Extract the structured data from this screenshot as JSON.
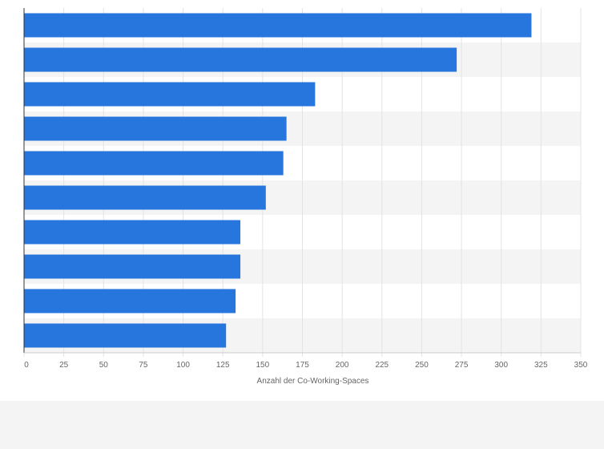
{
  "chart_data": {
    "type": "bar",
    "orientation": "horizontal",
    "title": "",
    "xlabel": "Anzahl der Co-Working-Spaces",
    "ylabel": "",
    "categories": [
      "",
      "",
      "",
      "",
      "",
      "",
      "",
      "",
      "",
      ""
    ],
    "values": [
      319,
      272,
      183,
      165,
      163,
      152,
      136,
      136,
      133,
      127
    ],
    "xlim": [
      0,
      350
    ],
    "xticks": [
      "0",
      "25",
      "50",
      "75",
      "100",
      "125",
      "150",
      "175",
      "200",
      "225",
      "250",
      "275",
      "300",
      "325",
      "350"
    ],
    "grid": true,
    "legend": "none",
    "colors": {
      "bar": "#2776dd",
      "band_even": "#ffffff",
      "band_odd": "#f4f4f4",
      "grid": "#e3e3e3",
      "axis": "#333333"
    }
  }
}
